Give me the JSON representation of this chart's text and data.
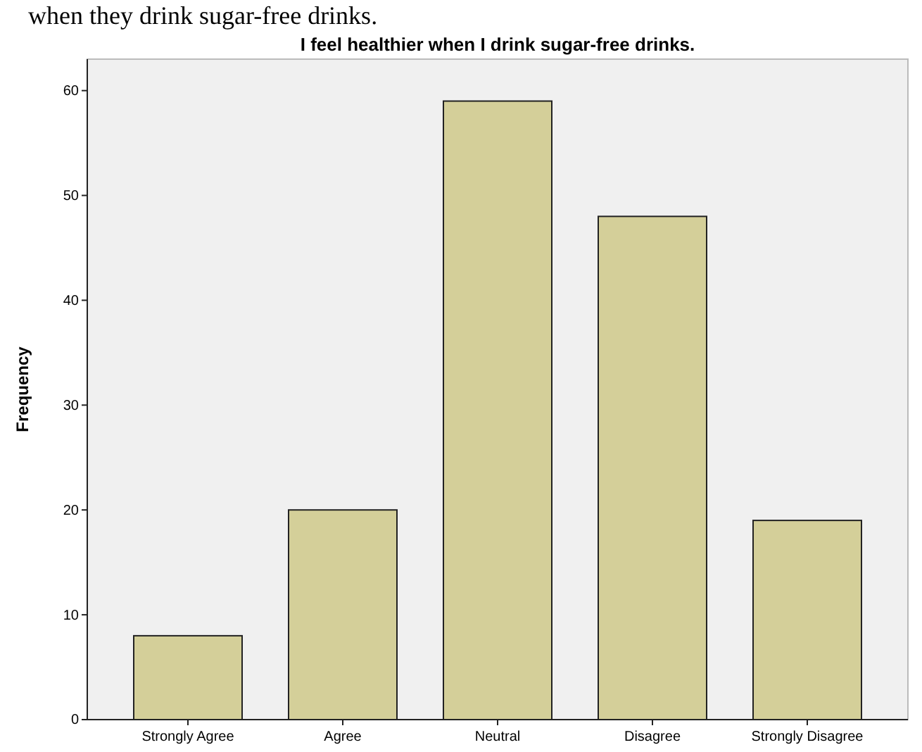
{
  "chart_data": {
    "type": "bar",
    "title": "I feel healthier when I drink sugar-free drinks.",
    "ylabel": "Frequency",
    "annotations": [
      "when they drink sugar-free drinks."
    ],
    "categories": [
      "Strongly Agree",
      "Agree",
      "Neutral",
      "Disagree",
      "Strongly Disagree"
    ],
    "values": [
      8,
      20,
      59,
      48,
      19
    ],
    "color": "#d4cf99",
    "ylim": [
      0,
      63
    ],
    "yticks": [
      0,
      10,
      20,
      30,
      40,
      50,
      60
    ],
    "grid": false
  }
}
